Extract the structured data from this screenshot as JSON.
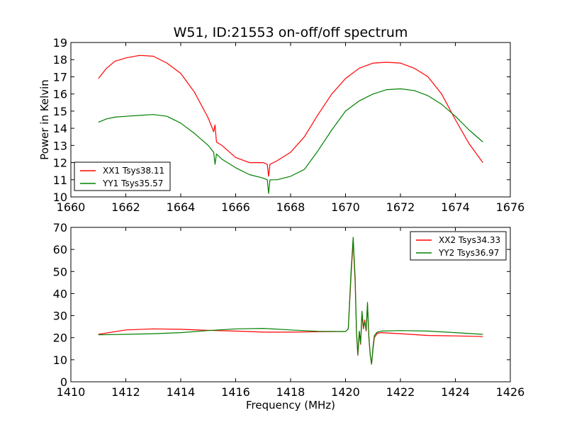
{
  "chart_data": [
    {
      "type": "line",
      "title": "W51, ID:21553 on-off/off spectrum",
      "xlabel": "",
      "ylabel": "Power in Kelvin",
      "xlim": [
        1660,
        1676
      ],
      "ylim": [
        10,
        19
      ],
      "xticks": [
        1660,
        1662,
        1664,
        1666,
        1668,
        1670,
        1672,
        1674,
        1676
      ],
      "yticks": [
        10,
        11,
        12,
        13,
        14,
        15,
        16,
        17,
        18,
        19
      ],
      "legend_position": "lower-left",
      "grid": false,
      "series": [
        {
          "name": "XX1 Tsys38.11",
          "color": "#ff0000",
          "x": [
            1661.0,
            1661.3,
            1661.6,
            1662.0,
            1662.5,
            1663.0,
            1663.5,
            1664.0,
            1664.5,
            1665.0,
            1665.2,
            1665.25,
            1665.3,
            1665.5,
            1666.0,
            1666.5,
            1667.0,
            1667.15,
            1667.2,
            1667.25,
            1667.5,
            1668.0,
            1668.5,
            1669.0,
            1669.5,
            1670.0,
            1670.5,
            1671.0,
            1671.5,
            1672.0,
            1672.5,
            1673.0,
            1673.5,
            1674.0,
            1674.5,
            1675.0
          ],
          "y": [
            16.9,
            17.5,
            17.9,
            18.1,
            18.25,
            18.2,
            17.8,
            17.2,
            16.1,
            14.6,
            13.8,
            14.2,
            13.2,
            13.0,
            12.3,
            12.0,
            12.0,
            11.9,
            11.2,
            11.9,
            12.1,
            12.6,
            13.5,
            14.8,
            16.0,
            16.9,
            17.5,
            17.8,
            17.85,
            17.8,
            17.5,
            17.0,
            16.0,
            14.5,
            13.1,
            12.0
          ]
        },
        {
          "name": "YY1 Tsys35.57",
          "color": "#008000",
          "x": [
            1661.0,
            1661.3,
            1661.6,
            1662.0,
            1662.5,
            1663.0,
            1663.5,
            1664.0,
            1664.5,
            1665.0,
            1665.2,
            1665.25,
            1665.3,
            1665.5,
            1666.0,
            1666.5,
            1667.0,
            1667.15,
            1667.2,
            1667.25,
            1667.5,
            1668.0,
            1668.5,
            1669.0,
            1669.5,
            1670.0,
            1670.5,
            1671.0,
            1671.5,
            1672.0,
            1672.5,
            1673.0,
            1673.5,
            1674.0,
            1674.5,
            1675.0
          ],
          "y": [
            14.35,
            14.55,
            14.65,
            14.7,
            14.75,
            14.8,
            14.7,
            14.3,
            13.7,
            13.0,
            12.6,
            11.9,
            12.5,
            12.2,
            11.7,
            11.3,
            11.1,
            11.0,
            10.2,
            11.0,
            11.0,
            11.2,
            11.6,
            12.7,
            13.9,
            15.0,
            15.6,
            16.0,
            16.25,
            16.3,
            16.2,
            15.9,
            15.4,
            14.7,
            13.9,
            13.2
          ]
        }
      ]
    },
    {
      "type": "line",
      "title": "",
      "xlabel": "Frequency (MHz)",
      "ylabel": "",
      "xlim": [
        1410,
        1426
      ],
      "ylim": [
        0,
        70
      ],
      "xticks": [
        1410,
        1412,
        1414,
        1416,
        1418,
        1420,
        1422,
        1424,
        1426
      ],
      "yticks": [
        0,
        10,
        20,
        30,
        40,
        50,
        60,
        70
      ],
      "legend_position": "top-right",
      "grid": false,
      "series": [
        {
          "name": "XX2 Tsys34.33",
          "color": "#ff0000",
          "x": [
            1411.0,
            1412.0,
            1413.0,
            1414.0,
            1415.0,
            1416.0,
            1417.0,
            1418.0,
            1419.0,
            1420.0,
            1420.1,
            1420.2,
            1420.28,
            1420.35,
            1420.4,
            1420.45,
            1420.5,
            1420.55,
            1420.6,
            1420.65,
            1420.7,
            1420.75,
            1420.8,
            1420.85,
            1420.9,
            1420.95,
            1421.0,
            1421.05,
            1421.15,
            1421.3,
            1422.0,
            1423.0,
            1424.0,
            1425.0
          ],
          "y": [
            21.5,
            23.5,
            24.0,
            23.8,
            23.3,
            23.0,
            22.5,
            22.5,
            22.7,
            22.8,
            24.0,
            48.0,
            64.0,
            45.0,
            22.0,
            12.0,
            22.5,
            17.0,
            31.0,
            24.0,
            28.0,
            23.0,
            35.0,
            20.0,
            12.0,
            8.0,
            15.0,
            20.0,
            22.0,
            22.3,
            21.8,
            21.0,
            20.8,
            20.5
          ]
        },
        {
          "name": "YY2 Tsys36.97",
          "color": "#008000",
          "x": [
            1411.0,
            1412.0,
            1413.0,
            1414.0,
            1415.0,
            1416.0,
            1417.0,
            1418.0,
            1419.0,
            1420.0,
            1420.1,
            1420.2,
            1420.28,
            1420.35,
            1420.4,
            1420.45,
            1420.5,
            1420.55,
            1420.6,
            1420.65,
            1420.7,
            1420.75,
            1420.8,
            1420.85,
            1420.9,
            1420.95,
            1421.0,
            1421.05,
            1421.15,
            1421.3,
            1422.0,
            1423.0,
            1424.0,
            1425.0
          ],
          "y": [
            21.3,
            21.5,
            21.8,
            22.3,
            23.2,
            24.0,
            24.2,
            23.5,
            22.9,
            22.8,
            24.0,
            50.0,
            65.5,
            47.0,
            22.5,
            12.5,
            23.0,
            17.5,
            32.0,
            25.0,
            27.0,
            23.5,
            36.0,
            21.0,
            12.0,
            8.0,
            16.0,
            21.0,
            22.5,
            23.0,
            23.2,
            23.0,
            22.3,
            21.5
          ]
        }
      ]
    }
  ]
}
